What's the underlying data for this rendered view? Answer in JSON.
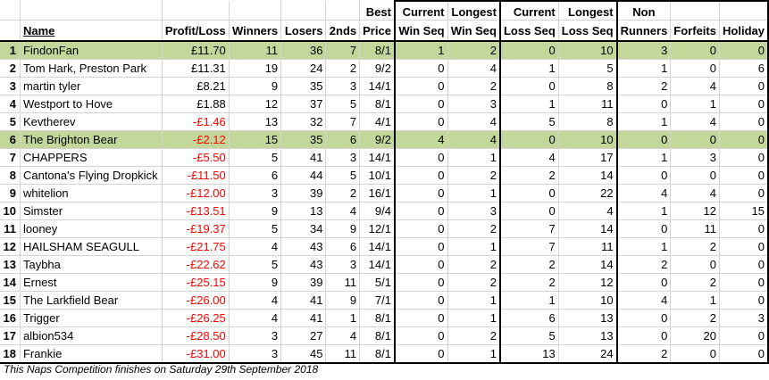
{
  "headers": {
    "name": "Name",
    "profit_loss": "Profit/Loss",
    "winners": "Winners",
    "losers": "Losers",
    "seconds": "2nds",
    "best_price_top": "Best",
    "best_price_bottom": "Price",
    "current_win_top": "Current",
    "current_win_bottom": "Win Seq",
    "longest_win_top": "Longest",
    "longest_win_bottom": "Win Seq",
    "current_loss_top": "Current",
    "current_loss_bottom": "Loss Seq",
    "longest_loss_top": "Longest",
    "longest_loss_bottom": "Loss Seq",
    "non_runners_top": "Non",
    "non_runners_bottom": "Runners",
    "forfeits": "Forfeits",
    "holiday": "Holiday"
  },
  "rows": [
    {
      "rank": "1",
      "name": "FindonFan",
      "profit": "£11.70",
      "negative": false,
      "highlight": true,
      "winners": "11",
      "losers": "36",
      "seconds": "7",
      "best_price": "8/1",
      "cur_win": "1",
      "long_win": "2",
      "cur_loss": "0",
      "long_loss": "10",
      "non_runners": "3",
      "forfeits": "0",
      "holiday": "0"
    },
    {
      "rank": "2",
      "name": "Tom Hark, Preston Park",
      "profit": "£11.31",
      "negative": false,
      "highlight": false,
      "winners": "19",
      "losers": "24",
      "seconds": "2",
      "best_price": "9/2",
      "cur_win": "0",
      "long_win": "4",
      "cur_loss": "1",
      "long_loss": "5",
      "non_runners": "1",
      "forfeits": "0",
      "holiday": "6"
    },
    {
      "rank": "3",
      "name": "martin tyler",
      "profit": "£8.21",
      "negative": false,
      "highlight": false,
      "winners": "9",
      "losers": "35",
      "seconds": "3",
      "best_price": "14/1",
      "cur_win": "0",
      "long_win": "2",
      "cur_loss": "0",
      "long_loss": "8",
      "non_runners": "2",
      "forfeits": "4",
      "holiday": "0"
    },
    {
      "rank": "4",
      "name": "Westport to Hove",
      "profit": "£1.88",
      "negative": false,
      "highlight": false,
      "winners": "12",
      "losers": "37",
      "seconds": "5",
      "best_price": "8/1",
      "cur_win": "0",
      "long_win": "3",
      "cur_loss": "1",
      "long_loss": "11",
      "non_runners": "0",
      "forfeits": "1",
      "holiday": "0"
    },
    {
      "rank": "5",
      "name": "Kevtherev",
      "profit": "-£1.46",
      "negative": true,
      "highlight": false,
      "winners": "13",
      "losers": "32",
      "seconds": "7",
      "best_price": "4/1",
      "cur_win": "0",
      "long_win": "4",
      "cur_loss": "5",
      "long_loss": "8",
      "non_runners": "1",
      "forfeits": "4",
      "holiday": "0"
    },
    {
      "rank": "6",
      "name": "The Brighton Bear",
      "profit": "-£2.12",
      "negative": true,
      "highlight": true,
      "winners": "15",
      "losers": "35",
      "seconds": "6",
      "best_price": "9/2",
      "cur_win": "4",
      "long_win": "4",
      "cur_loss": "0",
      "long_loss": "10",
      "non_runners": "0",
      "forfeits": "0",
      "holiday": "0"
    },
    {
      "rank": "7",
      "name": "CHAPPERS",
      "profit": "-£5.50",
      "negative": true,
      "highlight": false,
      "winners": "5",
      "losers": "41",
      "seconds": "3",
      "best_price": "14/1",
      "cur_win": "0",
      "long_win": "1",
      "cur_loss": "4",
      "long_loss": "17",
      "non_runners": "1",
      "forfeits": "3",
      "holiday": "0"
    },
    {
      "rank": "8",
      "name": "Cantona's Flying Dropkick",
      "profit": "-£11.50",
      "negative": true,
      "highlight": false,
      "winners": "6",
      "losers": "44",
      "seconds": "5",
      "best_price": "10/1",
      "cur_win": "0",
      "long_win": "2",
      "cur_loss": "2",
      "long_loss": "14",
      "non_runners": "0",
      "forfeits": "0",
      "holiday": "0"
    },
    {
      "rank": "9",
      "name": "whitelion",
      "profit": "-£12.00",
      "negative": true,
      "highlight": false,
      "winners": "3",
      "losers": "39",
      "seconds": "2",
      "best_price": "16/1",
      "cur_win": "0",
      "long_win": "1",
      "cur_loss": "0",
      "long_loss": "22",
      "non_runners": "4",
      "forfeits": "4",
      "holiday": "0"
    },
    {
      "rank": "10",
      "name": "Simster",
      "profit": "-£13.51",
      "negative": true,
      "highlight": false,
      "winners": "9",
      "losers": "13",
      "seconds": "4",
      "best_price": "9/4",
      "cur_win": "0",
      "long_win": "3",
      "cur_loss": "0",
      "long_loss": "4",
      "non_runners": "1",
      "forfeits": "12",
      "holiday": "15"
    },
    {
      "rank": "11",
      "name": "looney",
      "profit": "-£19.37",
      "negative": true,
      "highlight": false,
      "winners": "5",
      "losers": "34",
      "seconds": "9",
      "best_price": "12/1",
      "cur_win": "0",
      "long_win": "2",
      "cur_loss": "7",
      "long_loss": "14",
      "non_runners": "0",
      "forfeits": "11",
      "holiday": "0"
    },
    {
      "rank": "12",
      "name": "HAILSHAM SEAGULL",
      "profit": "-£21.75",
      "negative": true,
      "highlight": false,
      "winners": "4",
      "losers": "43",
      "seconds": "6",
      "best_price": "14/1",
      "cur_win": "0",
      "long_win": "1",
      "cur_loss": "7",
      "long_loss": "11",
      "non_runners": "1",
      "forfeits": "2",
      "holiday": "0"
    },
    {
      "rank": "13",
      "name": "Taybha",
      "profit": "-£22.62",
      "negative": true,
      "highlight": false,
      "winners": "5",
      "losers": "43",
      "seconds": "3",
      "best_price": "14/1",
      "cur_win": "0",
      "long_win": "2",
      "cur_loss": "2",
      "long_loss": "14",
      "non_runners": "2",
      "forfeits": "0",
      "holiday": "0"
    },
    {
      "rank": "14",
      "name": "Ernest",
      "profit": "-£25.15",
      "negative": true,
      "highlight": false,
      "winners": "9",
      "losers": "39",
      "seconds": "11",
      "best_price": "5/1",
      "cur_win": "0",
      "long_win": "2",
      "cur_loss": "2",
      "long_loss": "12",
      "non_runners": "0",
      "forfeits": "2",
      "holiday": "0"
    },
    {
      "rank": "15",
      "name": "The Larkfield Bear",
      "profit": "-£26.00",
      "negative": true,
      "highlight": false,
      "winners": "4",
      "losers": "41",
      "seconds": "9",
      "best_price": "7/1",
      "cur_win": "0",
      "long_win": "1",
      "cur_loss": "1",
      "long_loss": "10",
      "non_runners": "4",
      "forfeits": "1",
      "holiday": "0"
    },
    {
      "rank": "16",
      "name": "Trigger",
      "profit": "-£26.25",
      "negative": true,
      "highlight": false,
      "winners": "4",
      "losers": "41",
      "seconds": "1",
      "best_price": "8/1",
      "cur_win": "0",
      "long_win": "1",
      "cur_loss": "6",
      "long_loss": "13",
      "non_runners": "0",
      "forfeits": "2",
      "holiday": "3"
    },
    {
      "rank": "17",
      "name": "albion534",
      "profit": "-£28.50",
      "negative": true,
      "highlight": false,
      "winners": "3",
      "losers": "27",
      "seconds": "4",
      "best_price": "8/1",
      "cur_win": "0",
      "long_win": "2",
      "cur_loss": "5",
      "long_loss": "13",
      "non_runners": "0",
      "forfeits": "20",
      "holiday": "0"
    },
    {
      "rank": "18",
      "name": "Frankie",
      "profit": "-£31.00",
      "negative": true,
      "highlight": false,
      "winners": "3",
      "losers": "45",
      "seconds": "11",
      "best_price": "8/1",
      "cur_win": "0",
      "long_win": "1",
      "cur_loss": "13",
      "long_loss": "24",
      "non_runners": "2",
      "forfeits": "0",
      "holiday": "0"
    }
  ],
  "footer": "This Naps Competition finishes on Saturday 29th September 2018",
  "colors": {
    "highlight": "#c4d79b",
    "negative": "#ff0000",
    "gridline": "#d4d4d4"
  }
}
